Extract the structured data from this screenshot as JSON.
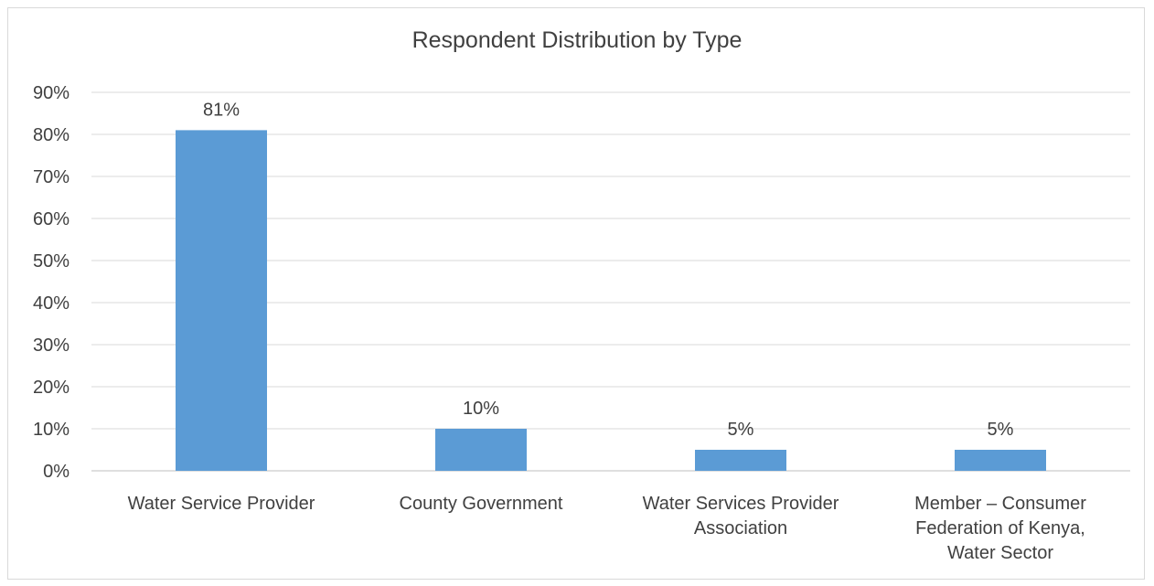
{
  "chart_data": {
    "type": "bar",
    "title": "Respondent Distribution by Type",
    "categories": [
      [
        "Water Service Provider"
      ],
      [
        "County Government"
      ],
      [
        "Water Services Provider",
        "Association"
      ],
      [
        "Member – Consumer",
        "Federation of Kenya,",
        "Water Sector"
      ]
    ],
    "values": [
      81,
      10,
      5,
      5
    ],
    "data_labels": [
      "81%",
      "10%",
      "5%",
      "5%"
    ],
    "y_ticks": [
      "0%",
      "10%",
      "20%",
      "30%",
      "40%",
      "50%",
      "60%",
      "70%",
      "80%",
      "90%"
    ],
    "ylim": [
      0,
      90
    ],
    "grid": true,
    "bar_color": "#5b9bd5",
    "grid_color": "#d9d9d9"
  }
}
